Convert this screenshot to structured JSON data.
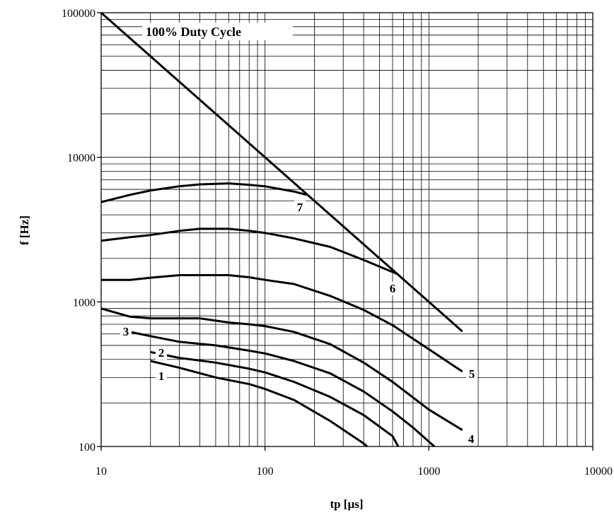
{
  "chart_data": {
    "type": "line",
    "title": "",
    "xlabel": "tp [µs]",
    "ylabel": "f [Hz]",
    "xscale": "log",
    "yscale": "log",
    "xlim": [
      10,
      10000
    ],
    "ylim": [
      100,
      100000
    ],
    "x_ticks": [
      "10",
      "100",
      "1000",
      "10000"
    ],
    "y_ticks": [
      "100",
      "1000",
      "10000",
      "100000"
    ],
    "grid": true,
    "annotation": "100% Duty Cycle",
    "series": [
      {
        "label": "100% Duty Cycle",
        "points": [
          [
            10,
            100000
          ],
          [
            1600,
            625
          ]
        ]
      },
      {
        "label": "7",
        "points": [
          [
            10,
            4900
          ],
          [
            15,
            5500
          ],
          [
            20,
            5900
          ],
          [
            30,
            6300
          ],
          [
            40,
            6500
          ],
          [
            60,
            6600
          ],
          [
            80,
            6450
          ],
          [
            100,
            6300
          ],
          [
            150,
            5800
          ],
          [
            180,
            5500
          ]
        ]
      },
      {
        "label": "6",
        "points": [
          [
            10,
            2650
          ],
          [
            15,
            2800
          ],
          [
            20,
            2900
          ],
          [
            30,
            3100
          ],
          [
            40,
            3200
          ],
          [
            60,
            3200
          ],
          [
            80,
            3100
          ],
          [
            100,
            3000
          ],
          [
            150,
            2750
          ],
          [
            250,
            2400
          ],
          [
            400,
            1950
          ],
          [
            650,
            1550
          ]
        ]
      },
      {
        "label": "5",
        "points": [
          [
            10,
            1420
          ],
          [
            15,
            1420
          ],
          [
            20,
            1470
          ],
          [
            30,
            1530
          ],
          [
            60,
            1530
          ],
          [
            80,
            1480
          ],
          [
            100,
            1420
          ],
          [
            150,
            1330
          ],
          [
            250,
            1100
          ],
          [
            400,
            880
          ],
          [
            600,
            690
          ],
          [
            1000,
            470
          ],
          [
            1600,
            330
          ]
        ]
      },
      {
        "label": "4",
        "points": [
          [
            10,
            900
          ],
          [
            15,
            790
          ],
          [
            20,
            770
          ],
          [
            30,
            770
          ],
          [
            40,
            770
          ],
          [
            60,
            720
          ],
          [
            80,
            700
          ],
          [
            100,
            680
          ],
          [
            150,
            620
          ],
          [
            250,
            510
          ],
          [
            400,
            380
          ],
          [
            600,
            280
          ],
          [
            1000,
            180
          ],
          [
            1600,
            130
          ]
        ]
      },
      {
        "label": "3",
        "points": [
          [
            14,
            630
          ],
          [
            20,
            580
          ],
          [
            30,
            530
          ],
          [
            50,
            500
          ],
          [
            80,
            460
          ],
          [
            100,
            440
          ],
          [
            150,
            390
          ],
          [
            250,
            320
          ],
          [
            400,
            240
          ],
          [
            600,
            175
          ],
          [
            800,
            135
          ],
          [
            1080,
            100
          ]
        ]
      },
      {
        "label": "2",
        "points": [
          [
            20,
            450
          ],
          [
            30,
            410
          ],
          [
            50,
            380
          ],
          [
            80,
            345
          ],
          [
            100,
            325
          ],
          [
            150,
            280
          ],
          [
            250,
            220
          ],
          [
            400,
            165
          ],
          [
            600,
            118
          ],
          [
            650,
            100
          ]
        ]
      },
      {
        "label": "1",
        "points": [
          [
            20,
            390
          ],
          [
            30,
            350
          ],
          [
            50,
            300
          ],
          [
            80,
            270
          ],
          [
            100,
            250
          ],
          [
            150,
            210
          ],
          [
            250,
            150
          ],
          [
            400,
            105
          ],
          [
            420,
            100
          ]
        ]
      }
    ]
  }
}
